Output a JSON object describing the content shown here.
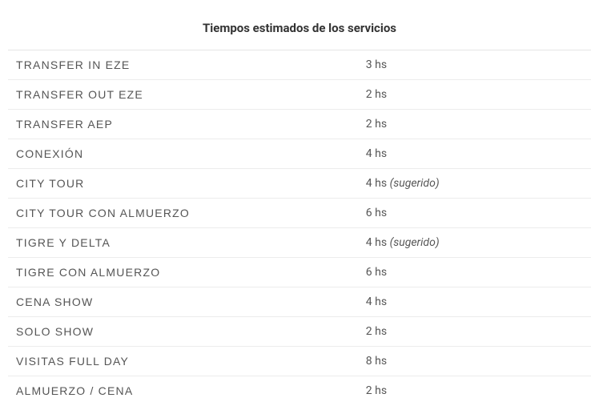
{
  "table": {
    "header": "Tiempos estimados de los servicios",
    "rows": [
      {
        "service": "TRANSFER IN EZE",
        "time": "3 hs",
        "note": ""
      },
      {
        "service": "TRANSFER OUT EZE",
        "time": "2 hs",
        "note": ""
      },
      {
        "service": "TRANSFER AEP",
        "time": "2 hs",
        "note": ""
      },
      {
        "service": "CONEXIÓN",
        "time": "4 hs",
        "note": ""
      },
      {
        "service": "CITY TOUR",
        "time": "4 hs",
        "note": "(sugerido)"
      },
      {
        "service": "CITY TOUR CON ALMUERZO",
        "time": "6 hs",
        "note": ""
      },
      {
        "service": "TIGRE Y DELTA",
        "time": "4 hs",
        "note": "(sugerido)"
      },
      {
        "service": "TIGRE CON ALMUERZO",
        "time": "6 hs",
        "note": ""
      },
      {
        "service": "CENA SHOW",
        "time": "4 hs",
        "note": ""
      },
      {
        "service": "SOLO SHOW",
        "time": "2 hs",
        "note": ""
      },
      {
        "service": "VISITAS FULL DAY",
        "time": "8 hs",
        "note": ""
      },
      {
        "service": "ALMUERZO / CENA",
        "time": "2 hs",
        "note": ""
      }
    ],
    "colors": {
      "background": "#ffffff",
      "border": "#e5e5e5",
      "row_border": "#ececec",
      "header_text": "#333333",
      "body_text": "#555555"
    },
    "typography": {
      "header_fontsize": 15,
      "body_fontsize": 14,
      "service_letter_spacing": 1.2
    }
  }
}
